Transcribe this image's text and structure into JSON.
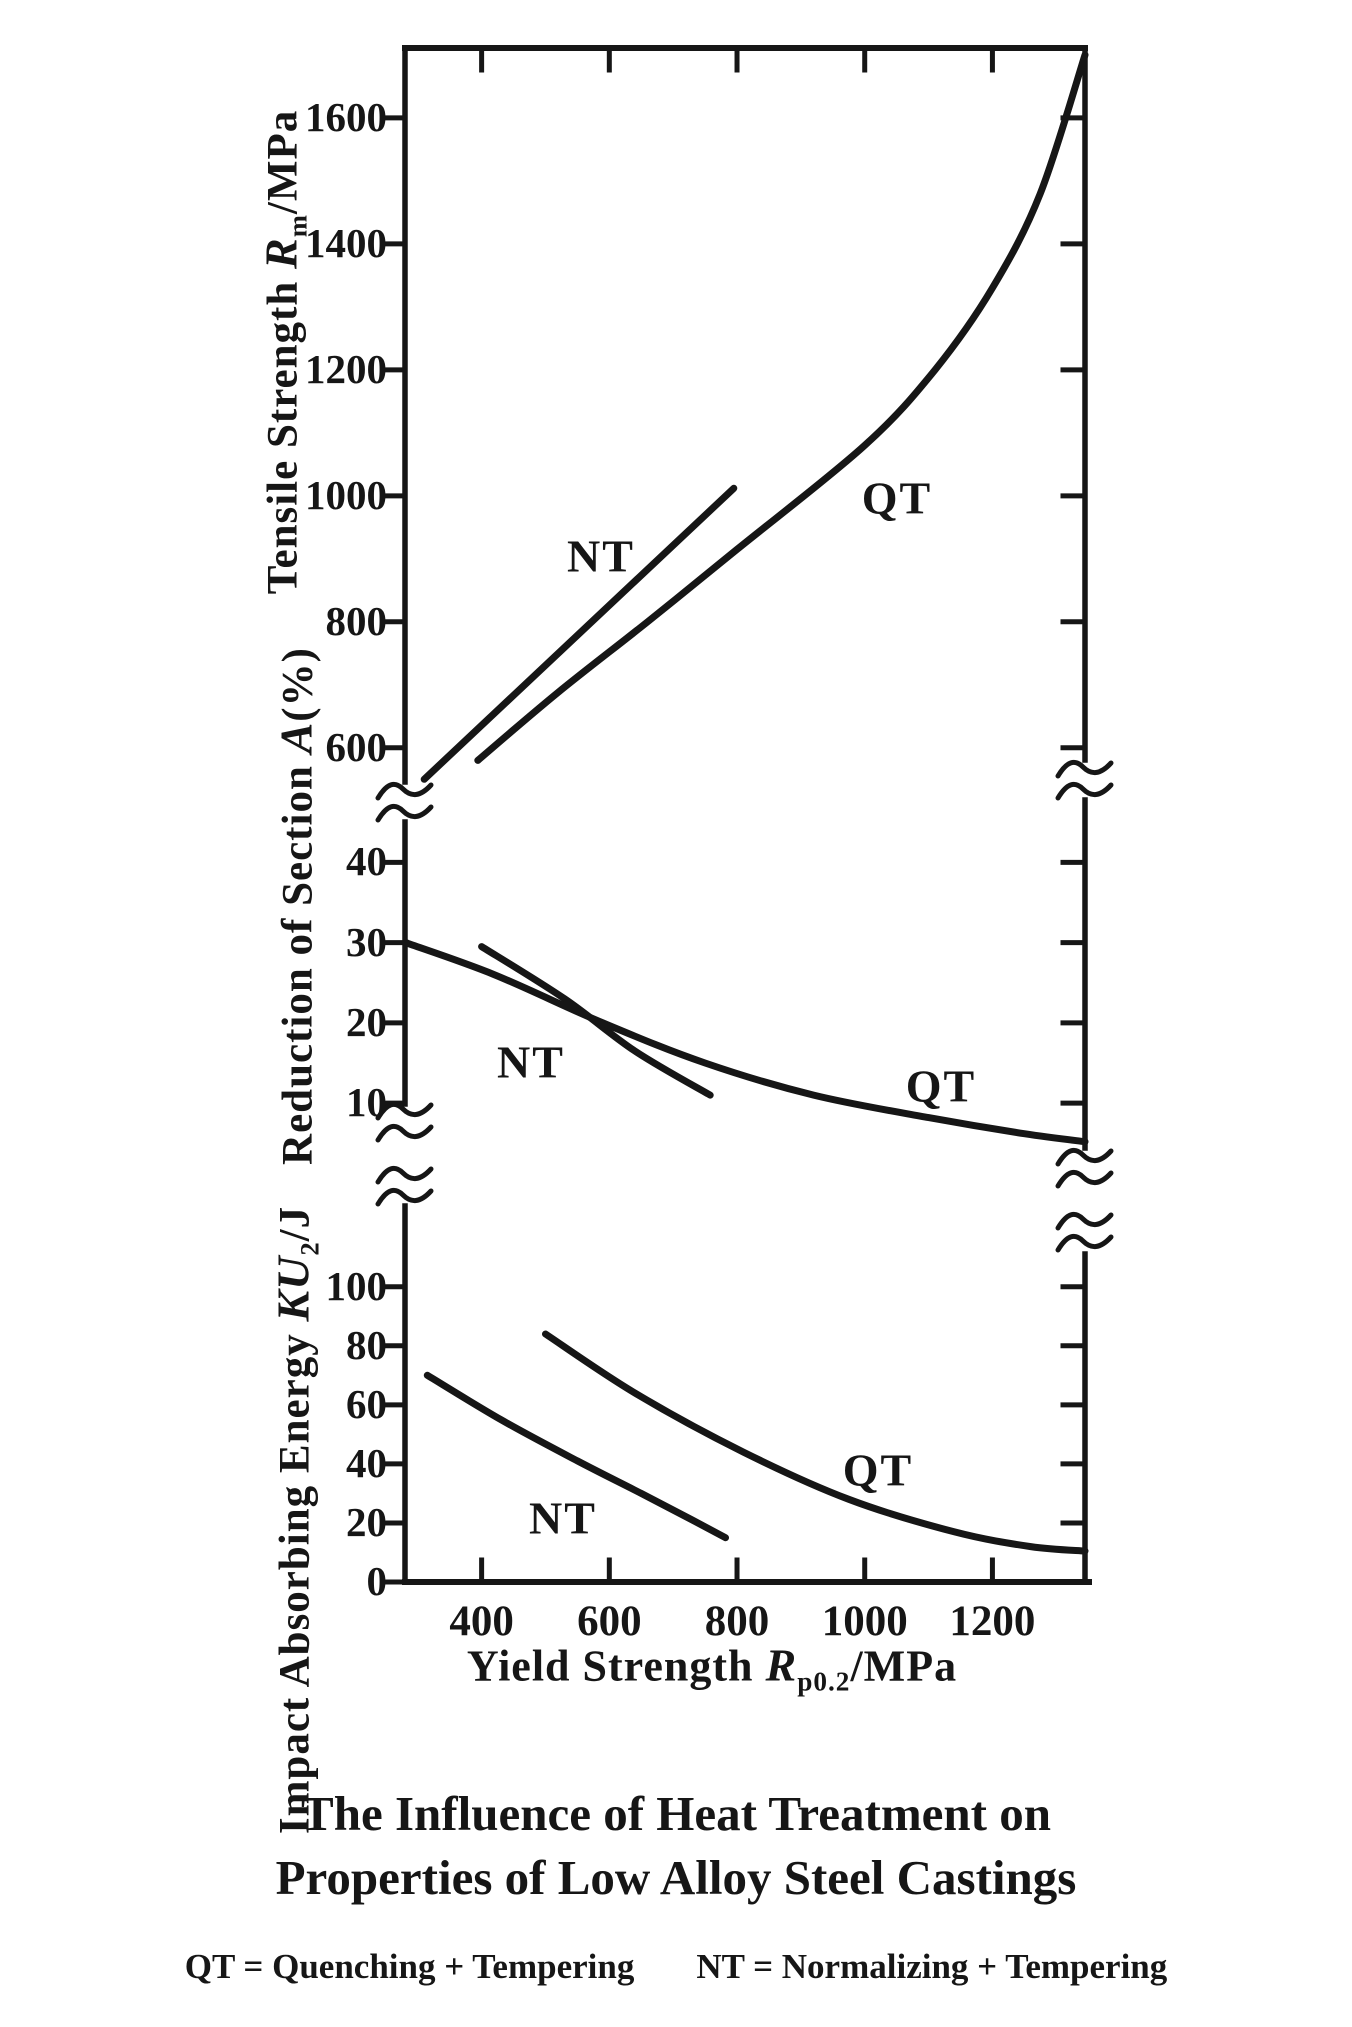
{
  "figure": {
    "caption": {
      "line1": "The Influence of Heat Treatment on",
      "line2": "Properties of Low Alloy Steel Castings"
    },
    "legend": {
      "qt": "QT = Quenching + Tempering",
      "nt": "NT = Normalizing + Tempering"
    },
    "axis_titles": {
      "tensile": {
        "prefix": "Tensile Strength",
        "symbol": "R",
        "sub": "m",
        "suffix": "/MPa"
      },
      "reduction": {
        "prefix": "Reduction of Section",
        "symbol": "A",
        "sub": "",
        "suffix": "(%)"
      },
      "impact": {
        "prefix": "Impact Absorbing Energy",
        "symbol": "KU",
        "sub": "2",
        "suffix": "/J"
      },
      "x": {
        "prefix": "Yield Strength",
        "symbol": "R",
        "sub": "p0.2",
        "suffix": "/MPa"
      }
    },
    "ink_color": "#161616",
    "paper_color": "#ffffff"
  },
  "chart_data": {
    "type": "line",
    "title": "The Influence of Heat Treatment on Properties of Low Alloy Steel Castings",
    "xlabel": "Yield Strength Rp0.2/MPa",
    "x_unit": "MPa",
    "xlim": [
      280,
      1345
    ],
    "x_ticks": [
      400,
      600,
      800,
      1000,
      1200
    ],
    "grid": false,
    "legend_position": "below-caption",
    "panels": [
      {
        "id": "tensile",
        "ylabel": "Tensile Strength Rm/MPa",
        "y_unit": "MPa",
        "ylim": [
          525,
          1711
        ],
        "y_ticks": [
          1600,
          1400,
          1200,
          1000,
          800,
          600
        ],
        "series": [
          {
            "name": "NT",
            "points": [
              [
                310,
                550
              ],
              [
                795,
                1012
              ]
            ]
          },
          {
            "name": "QT",
            "points": [
              [
                394,
                580
              ],
              [
                520,
                688
              ],
              [
                660,
                800
              ],
              [
                800,
                915
              ],
              [
                1000,
                1080
              ],
              [
                1110,
                1200
              ],
              [
                1200,
                1330
              ],
              [
                1275,
                1480
              ],
              [
                1345,
                1700
              ]
            ]
          }
        ]
      },
      {
        "id": "reduction",
        "ylabel": "Reduction of Section A(%)",
        "y_unit": "%",
        "ylim": [
          8.9,
          45.9
        ],
        "y_ticks": [
          40,
          30,
          20,
          10
        ],
        "series": [
          {
            "name": "NT",
            "points": [
              [
                400,
                29.5
              ],
              [
                530,
                23
              ],
              [
                640,
                16.5
              ],
              [
                758,
                11
              ]
            ]
          },
          {
            "name": "QT",
            "points": [
              [
                281,
                30
              ],
              [
                420,
                26
              ],
              [
                590,
                20
              ],
              [
                750,
                15
              ],
              [
                920,
                11
              ],
              [
                1100,
                8.2
              ],
              [
                1250,
                6.2
              ],
              [
                1345,
                5.2
              ]
            ]
          }
        ]
      },
      {
        "id": "impact",
        "ylabel": "Impact Absorbing Energy KU2/J",
        "y_unit": "J",
        "ylim": [
          0,
          137.5
        ],
        "y_ticks": [
          100,
          80,
          60,
          40,
          20,
          0
        ],
        "series": [
          {
            "name": "NT",
            "points": [
              [
                315,
                70
              ],
              [
                430,
                55
              ],
              [
                550,
                41
              ],
              [
                650,
                30
              ],
              [
                730,
                21
              ],
              [
                782,
                15
              ]
            ]
          },
          {
            "name": "QT",
            "points": [
              [
                500,
                84
              ],
              [
                640,
                64
              ],
              [
                810,
                44
              ],
              [
                975,
                28
              ],
              [
                1140,
                17
              ],
              [
                1260,
                12
              ],
              [
                1345,
                10.5
              ]
            ]
          }
        ]
      }
    ]
  }
}
